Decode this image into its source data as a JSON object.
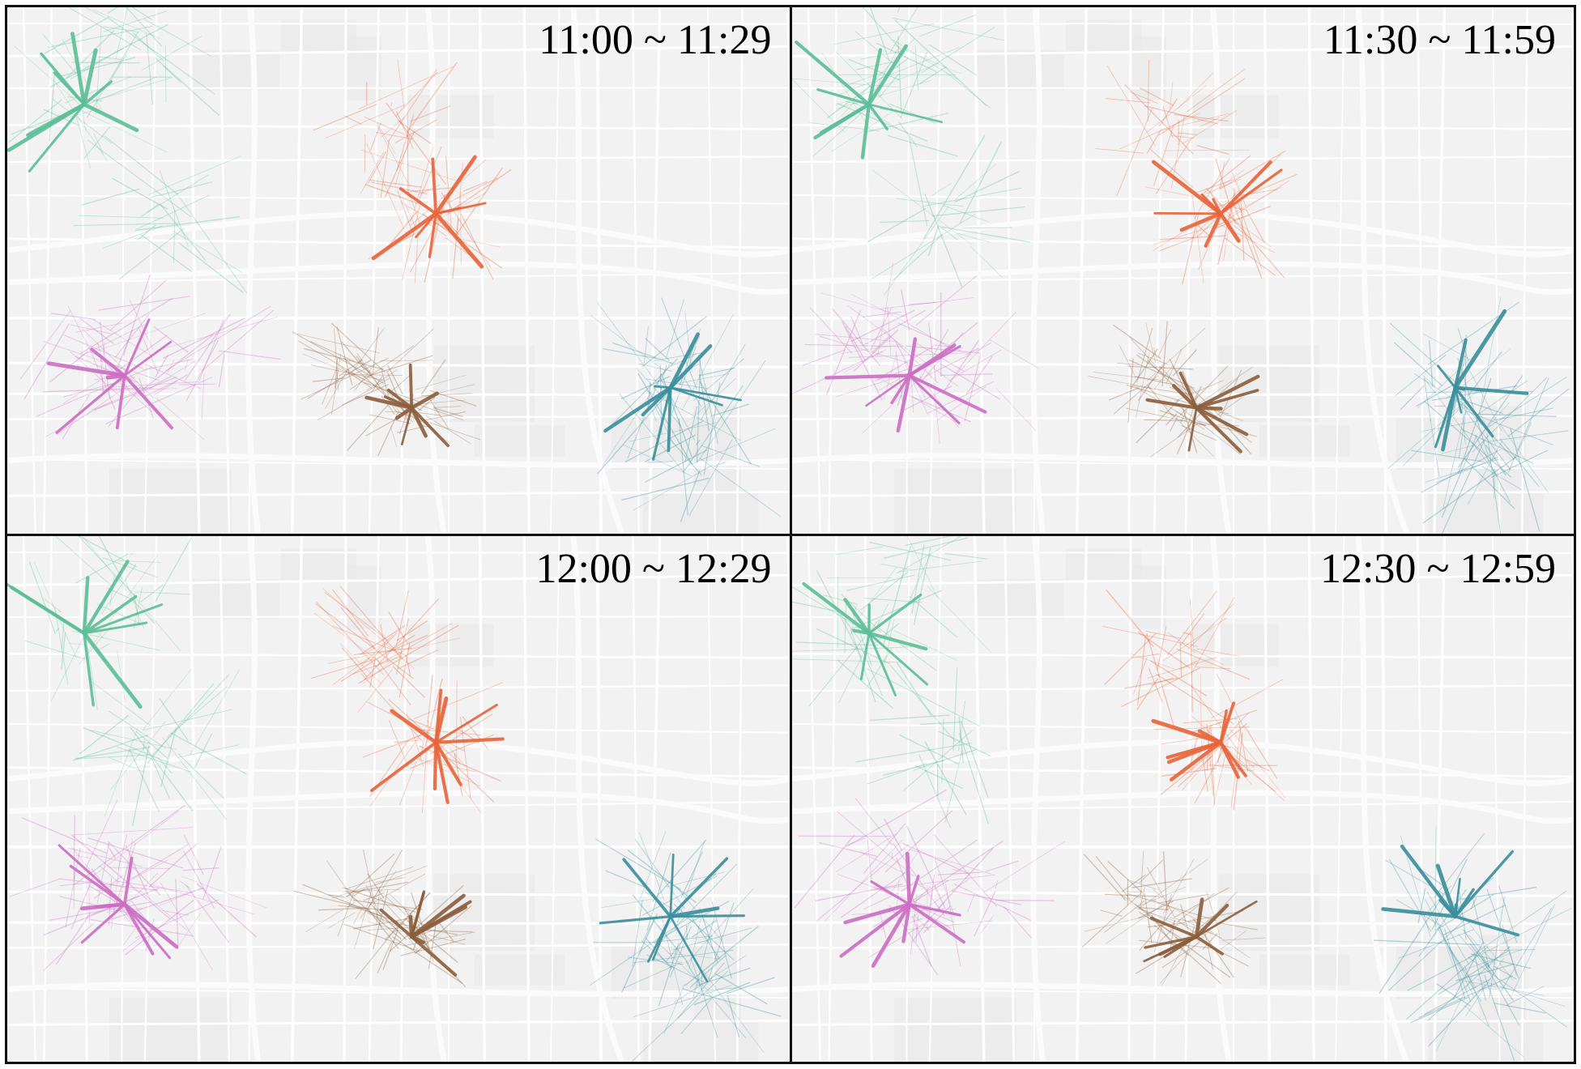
{
  "layout": {
    "rows": 2,
    "cols": 2
  },
  "base_map": {
    "style": "light-gray street map",
    "road_color": "#ffffff",
    "background_color": "#f2f2f2"
  },
  "clusters": [
    {
      "id": "northwest",
      "color": "#5bbf98"
    },
    {
      "id": "north-center",
      "color": "#e8643a"
    },
    {
      "id": "west",
      "color": "#cc6ec4"
    },
    {
      "id": "center",
      "color": "#8b5e3c"
    },
    {
      "id": "east",
      "color": "#3a8f9c"
    }
  ],
  "panels": [
    {
      "time_range": "11:00 ~ 11:29"
    },
    {
      "time_range": "11:30 ~ 11:59"
    },
    {
      "time_range": "12:00 ~ 12:29"
    },
    {
      "time_range": "12:30 ~ 12:59"
    }
  ]
}
